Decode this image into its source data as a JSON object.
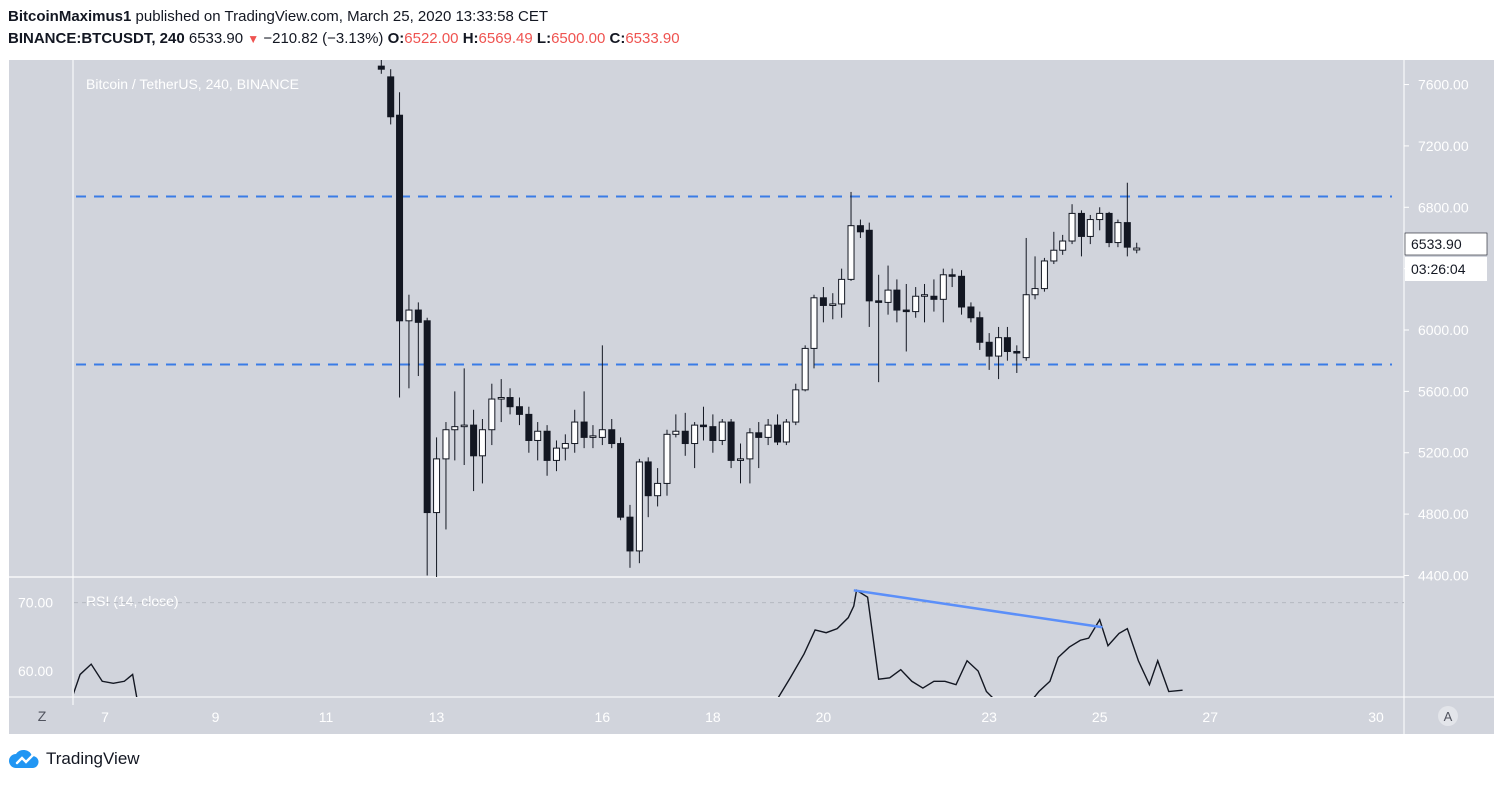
{
  "header": {
    "author": "BitcoinMaximus1",
    "published_text": "published on TradingView.com, March 25, 2020 13:33:58 CET",
    "symbol": "BINANCE:BTCUSDT, 240",
    "price": "6533.90",
    "change": "−210.82 (−3.13%)",
    "o_label": "O:",
    "o_value": "6522.00",
    "h_label": "H:",
    "h_value": "6569.49",
    "l_label": "L:",
    "l_value": "6500.00",
    "c_label": "C:",
    "c_value": "6533.90"
  },
  "footer": {
    "brand": "TradingView"
  },
  "colors": {
    "background": "#d1d4dc",
    "up_candle": "#ffffff",
    "down_candle": "#131722",
    "level_line": "#3a7ce6",
    "rsi_trend": "#5b8ff9",
    "price_tag_text": "#131722"
  },
  "chart_data": [
    {
      "type": "candlestick",
      "title": "Bitcoin / TetherUS, 240, BINANCE",
      "price_ticks": [
        "7600.00",
        "7200.00",
        "6800.00",
        "6400.00",
        "6000.00",
        "5600.00",
        "5200.00",
        "4800.00",
        "4400.00"
      ],
      "price_tick_values": [
        7600,
        7200,
        6800,
        6400,
        6000,
        5600,
        5200,
        4800,
        4400
      ],
      "ylim": [
        4390,
        7760
      ],
      "x_ticks": [
        "7",
        "9",
        "11",
        "13",
        "16",
        "18",
        "20",
        "23",
        "25",
        "27",
        "30"
      ],
      "x_tick_dates": [
        7,
        9,
        11,
        13,
        16,
        18,
        20,
        23,
        25,
        27,
        30
      ],
      "xlim_date": [
        6.35,
        30.2
      ],
      "horizontal_levels": [
        6870,
        5775
      ],
      "last_price": "6533.90",
      "countdown": "03:26:04",
      "candles": [
        {
          "t": 12.0,
          "o": 7720,
          "h": 7780,
          "l": 7670,
          "c": 7700
        },
        {
          "t": 12.17,
          "o": 7650,
          "h": 7700,
          "l": 7340,
          "c": 7390
        },
        {
          "t": 12.33,
          "o": 7400,
          "h": 7550,
          "l": 5560,
          "c": 6060
        },
        {
          "t": 12.5,
          "o": 6060,
          "h": 6230,
          "l": 5620,
          "c": 6130
        },
        {
          "t": 12.67,
          "o": 6130,
          "h": 6180,
          "l": 5700,
          "c": 6050
        },
        {
          "t": 12.83,
          "o": 6060,
          "h": 6080,
          "l": 4400,
          "c": 4810
        },
        {
          "t": 13.0,
          "o": 4810,
          "h": 5300,
          "l": 4390,
          "c": 5160
        },
        {
          "t": 13.17,
          "o": 5160,
          "h": 5400,
          "l": 4700,
          "c": 5350
        },
        {
          "t": 13.33,
          "o": 5350,
          "h": 5600,
          "l": 5150,
          "c": 5370
        },
        {
          "t": 13.5,
          "o": 5370,
          "h": 5750,
          "l": 5120,
          "c": 5380
        },
        {
          "t": 13.67,
          "o": 5380,
          "h": 5480,
          "l": 4950,
          "c": 5180
        },
        {
          "t": 13.83,
          "o": 5180,
          "h": 5420,
          "l": 5000,
          "c": 5350
        },
        {
          "t": 14.0,
          "o": 5350,
          "h": 5650,
          "l": 5250,
          "c": 5550
        },
        {
          "t": 14.17,
          "o": 5550,
          "h": 5680,
          "l": 5400,
          "c": 5560
        },
        {
          "t": 14.33,
          "o": 5560,
          "h": 5620,
          "l": 5450,
          "c": 5500
        },
        {
          "t": 14.5,
          "o": 5500,
          "h": 5560,
          "l": 5380,
          "c": 5450
        },
        {
          "t": 14.67,
          "o": 5450,
          "h": 5500,
          "l": 5200,
          "c": 5280
        },
        {
          "t": 14.83,
          "o": 5280,
          "h": 5400,
          "l": 5150,
          "c": 5340
        },
        {
          "t": 15.0,
          "o": 5340,
          "h": 5380,
          "l": 5050,
          "c": 5150
        },
        {
          "t": 15.17,
          "o": 5150,
          "h": 5280,
          "l": 5080,
          "c": 5230
        },
        {
          "t": 15.33,
          "o": 5230,
          "h": 5320,
          "l": 5150,
          "c": 5260
        },
        {
          "t": 15.5,
          "o": 5260,
          "h": 5480,
          "l": 5200,
          "c": 5400
        },
        {
          "t": 15.67,
          "o": 5400,
          "h": 5600,
          "l": 5230,
          "c": 5300
        },
        {
          "t": 15.83,
          "o": 5300,
          "h": 5380,
          "l": 5230,
          "c": 5310
        },
        {
          "t": 16.0,
          "o": 5300,
          "h": 5900,
          "l": 5250,
          "c": 5350
        },
        {
          "t": 16.17,
          "o": 5350,
          "h": 5420,
          "l": 5230,
          "c": 5260
        },
        {
          "t": 16.33,
          "o": 5260,
          "h": 5300,
          "l": 4760,
          "c": 4780
        },
        {
          "t": 16.5,
          "o": 4780,
          "h": 4860,
          "l": 4450,
          "c": 4560
        },
        {
          "t": 16.67,
          "o": 4560,
          "h": 5160,
          "l": 4480,
          "c": 5140
        },
        {
          "t": 16.83,
          "o": 5140,
          "h": 5170,
          "l": 4780,
          "c": 4920
        },
        {
          "t": 17.0,
          "o": 4920,
          "h": 5100,
          "l": 4850,
          "c": 5000
        },
        {
          "t": 17.17,
          "o": 5000,
          "h": 5350,
          "l": 4920,
          "c": 5320
        },
        {
          "t": 17.33,
          "o": 5320,
          "h": 5450,
          "l": 5300,
          "c": 5340
        },
        {
          "t": 17.5,
          "o": 5340,
          "h": 5460,
          "l": 5180,
          "c": 5260
        },
        {
          "t": 17.67,
          "o": 5260,
          "h": 5400,
          "l": 5100,
          "c": 5380
        },
        {
          "t": 17.83,
          "o": 5380,
          "h": 5500,
          "l": 5280,
          "c": 5370
        },
        {
          "t": 18.0,
          "o": 5370,
          "h": 5450,
          "l": 5200,
          "c": 5280
        },
        {
          "t": 18.17,
          "o": 5280,
          "h": 5420,
          "l": 5250,
          "c": 5400
        },
        {
          "t": 18.33,
          "o": 5400,
          "h": 5420,
          "l": 5100,
          "c": 5150
        },
        {
          "t": 18.5,
          "o": 5150,
          "h": 5260,
          "l": 5000,
          "c": 5160
        },
        {
          "t": 18.67,
          "o": 5160,
          "h": 5360,
          "l": 5000,
          "c": 5330
        },
        {
          "t": 18.83,
          "o": 5330,
          "h": 5400,
          "l": 5100,
          "c": 5300
        },
        {
          "t": 19.0,
          "o": 5300,
          "h": 5420,
          "l": 5250,
          "c": 5380
        },
        {
          "t": 19.17,
          "o": 5380,
          "h": 5450,
          "l": 5250,
          "c": 5270
        },
        {
          "t": 19.33,
          "o": 5270,
          "h": 5420,
          "l": 5250,
          "c": 5400
        },
        {
          "t": 19.5,
          "o": 5400,
          "h": 5650,
          "l": 5380,
          "c": 5610
        },
        {
          "t": 19.67,
          "o": 5610,
          "h": 5900,
          "l": 5600,
          "c": 5880
        },
        {
          "t": 19.83,
          "o": 5880,
          "h": 6230,
          "l": 5750,
          "c": 6210
        },
        {
          "t": 20.0,
          "o": 6210,
          "h": 6280,
          "l": 6050,
          "c": 6160
        },
        {
          "t": 20.17,
          "o": 6160,
          "h": 6240,
          "l": 6070,
          "c": 6170
        },
        {
          "t": 20.33,
          "o": 6170,
          "h": 6400,
          "l": 6080,
          "c": 6330
        },
        {
          "t": 20.5,
          "o": 6330,
          "h": 6900,
          "l": 6320,
          "c": 6680
        },
        {
          "t": 20.67,
          "o": 6680,
          "h": 6720,
          "l": 6600,
          "c": 6640
        },
        {
          "t": 20.83,
          "o": 6650,
          "h": 6700,
          "l": 6020,
          "c": 6190
        },
        {
          "t": 21.0,
          "o": 6190,
          "h": 6360,
          "l": 5660,
          "c": 6180
        },
        {
          "t": 21.17,
          "o": 6180,
          "h": 6420,
          "l": 6100,
          "c": 6260
        },
        {
          "t": 21.33,
          "o": 6260,
          "h": 6330,
          "l": 6050,
          "c": 6130
        },
        {
          "t": 21.5,
          "o": 6130,
          "h": 6300,
          "l": 5860,
          "c": 6120
        },
        {
          "t": 21.67,
          "o": 6120,
          "h": 6280,
          "l": 6080,
          "c": 6220
        },
        {
          "t": 21.83,
          "o": 6220,
          "h": 6300,
          "l": 6050,
          "c": 6230
        },
        {
          "t": 22.0,
          "o": 6220,
          "h": 6330,
          "l": 6120,
          "c": 6200
        },
        {
          "t": 22.17,
          "o": 6200,
          "h": 6400,
          "l": 6050,
          "c": 6360
        },
        {
          "t": 22.33,
          "o": 6360,
          "h": 6400,
          "l": 6280,
          "c": 6350
        },
        {
          "t": 22.5,
          "o": 6350,
          "h": 6390,
          "l": 6100,
          "c": 6150
        },
        {
          "t": 22.67,
          "o": 6150,
          "h": 6180,
          "l": 6050,
          "c": 6080
        },
        {
          "t": 22.83,
          "o": 6080,
          "h": 6120,
          "l": 5870,
          "c": 5920
        },
        {
          "t": 23.0,
          "o": 5920,
          "h": 5980,
          "l": 5740,
          "c": 5830
        },
        {
          "t": 23.17,
          "o": 5830,
          "h": 6020,
          "l": 5680,
          "c": 5950
        },
        {
          "t": 23.33,
          "o": 5950,
          "h": 6020,
          "l": 5800,
          "c": 5860
        },
        {
          "t": 23.5,
          "o": 5860,
          "h": 5900,
          "l": 5720,
          "c": 5850
        },
        {
          "t": 23.67,
          "o": 5820,
          "h": 6600,
          "l": 5800,
          "c": 6230
        },
        {
          "t": 23.83,
          "o": 6230,
          "h": 6480,
          "l": 6200,
          "c": 6270
        },
        {
          "t": 24.0,
          "o": 6270,
          "h": 6470,
          "l": 6250,
          "c": 6450
        },
        {
          "t": 24.17,
          "o": 6450,
          "h": 6640,
          "l": 6430,
          "c": 6520
        },
        {
          "t": 24.33,
          "o": 6520,
          "h": 6620,
          "l": 6490,
          "c": 6580
        },
        {
          "t": 24.5,
          "o": 6580,
          "h": 6820,
          "l": 6560,
          "c": 6760
        },
        {
          "t": 24.67,
          "o": 6760,
          "h": 6780,
          "l": 6480,
          "c": 6610
        },
        {
          "t": 24.83,
          "o": 6610,
          "h": 6750,
          "l": 6560,
          "c": 6720
        },
        {
          "t": 25.0,
          "o": 6720,
          "h": 6800,
          "l": 6650,
          "c": 6760
        },
        {
          "t": 25.17,
          "o": 6760,
          "h": 6770,
          "l": 6540,
          "c": 6570
        },
        {
          "t": 25.33,
          "o": 6570,
          "h": 6720,
          "l": 6540,
          "c": 6700
        },
        {
          "t": 25.5,
          "o": 6700,
          "h": 6960,
          "l": 6480,
          "c": 6540
        },
        {
          "t": 25.67,
          "o": 6522,
          "h": 6569,
          "l": 6500,
          "c": 6534
        }
      ]
    },
    {
      "type": "line",
      "title": "RSI (14, close)",
      "y_ticks": [
        "70.00",
        "60.00"
      ],
      "y_tick_values": [
        70,
        60
      ],
      "ylim": [
        56.2,
        73.6
      ],
      "reference_level": 70,
      "series": [
        {
          "points": [
            [
              6.4,
              56
            ],
            [
              6.55,
              59.5
            ],
            [
              6.75,
              61
            ],
            [
              6.95,
              58.5
            ],
            [
              7.15,
              58.2
            ],
            [
              7.35,
              58.5
            ],
            [
              7.5,
              59.5
            ],
            [
              7.6,
              55
            ],
            [
              19.1,
              55
            ],
            [
              19.4,
              59
            ],
            [
              19.65,
              62.5
            ],
            [
              19.85,
              66
            ],
            [
              20.05,
              65.6
            ],
            [
              20.25,
              66.2
            ],
            [
              20.45,
              67.8
            ],
            [
              20.55,
              69.5
            ],
            [
              20.6,
              71.8
            ],
            [
              20.8,
              70.8
            ],
            [
              21.0,
              58.8
            ],
            [
              21.2,
              59
            ],
            [
              21.4,
              60.2
            ],
            [
              21.6,
              58.5
            ],
            [
              21.8,
              57.5
            ],
            [
              22.0,
              58.5
            ],
            [
              22.2,
              58.5
            ],
            [
              22.4,
              58
            ],
            [
              22.6,
              61.5
            ],
            [
              22.8,
              60
            ],
            [
              22.95,
              57
            ],
            [
              23.2,
              55
            ],
            [
              23.8,
              56
            ],
            [
              23.9,
              57
            ],
            [
              24.1,
              58.5
            ],
            [
              24.25,
              62
            ],
            [
              24.45,
              63.5
            ],
            [
              24.65,
              64.5
            ],
            [
              24.8,
              64.8
            ],
            [
              25.0,
              67.5
            ],
            [
              25.15,
              63.7
            ],
            [
              25.35,
              65.5
            ],
            [
              25.5,
              66.2
            ],
            [
              25.7,
              61.5
            ],
            [
              25.9,
              58
            ],
            [
              26.05,
              61.5
            ],
            [
              26.25,
              57
            ],
            [
              26.5,
              57.2
            ]
          ]
        }
      ],
      "trendline": [
        [
          20.55,
          71.8
        ],
        [
          25.05,
          66.4
        ]
      ]
    }
  ]
}
